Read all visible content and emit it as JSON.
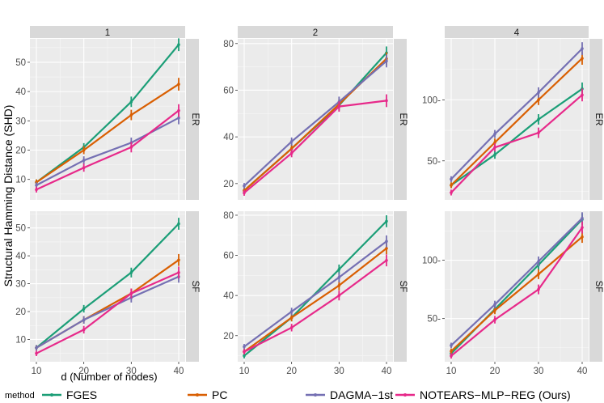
{
  "chart_data": {
    "type": "line",
    "ylabel": "Structural Hamming Distance (SHD)",
    "xlabel": "d (Number of nodes)",
    "x": [
      10,
      20,
      30,
      40
    ],
    "x_ticks": [
      "10",
      "20",
      "30",
      "40"
    ],
    "col_labels": [
      "1",
      "2",
      "4"
    ],
    "row_labels": [
      "ER",
      "SF"
    ],
    "legend": {
      "title": "method",
      "entries": [
        "FGES",
        "PC",
        "DAGMA−1st",
        "NOTEARS−MLP−REG (Ours)"
      ],
      "position": "bottom"
    },
    "series_colors": [
      "#1b9e77",
      "#d95f02",
      "#7570b3",
      "#e7298a"
    ],
    "panels": [
      {
        "row": "ER",
        "col": "1",
        "ylim": [
          3,
          58
        ],
        "yticks": [
          10,
          20,
          30,
          40,
          50
        ],
        "series": [
          {
            "name": "FGES",
            "values": [
              9,
              21,
              36.5,
              56
            ]
          },
          {
            "name": "PC",
            "values": [
              9,
              20,
              32,
              42.5
            ]
          },
          {
            "name": "DAGMA−1st",
            "values": [
              8,
              16.5,
              22.5,
              31
            ]
          },
          {
            "name": "NOTEARS−MLP−REG (Ours)",
            "values": [
              6.5,
              14,
              21,
              33.5
            ]
          }
        ]
      },
      {
        "row": "ER",
        "col": "2",
        "ylim": [
          13,
          82
        ],
        "yticks": [
          20,
          40,
          60,
          80
        ],
        "series": [
          {
            "name": "FGES",
            "values": [
              17,
              35,
              53.5,
              76
            ]
          },
          {
            "name": "PC",
            "values": [
              17,
              35,
              54,
              73.5
            ]
          },
          {
            "name": "DAGMA−1st",
            "values": [
              19,
              38,
              55,
              72.5
            ]
          },
          {
            "name": "NOTEARS−MLP−REG (Ours)",
            "values": [
              16,
              33,
              53,
              55.5
            ]
          }
        ]
      },
      {
        "row": "ER",
        "col": "4",
        "ylim": [
          18,
          150
        ],
        "yticks": [
          50,
          100
        ],
        "series": [
          {
            "name": "FGES",
            "values": [
              30,
              55,
              84,
              109
            ]
          },
          {
            "name": "PC",
            "values": [
              30,
              65,
              100,
              134
            ]
          },
          {
            "name": "DAGMA−1st",
            "values": [
              35,
              72,
              106,
              142
            ]
          },
          {
            "name": "NOTEARS−MLP−REG (Ours)",
            "values": [
              24,
              61,
              73,
              104
            ]
          }
        ]
      },
      {
        "row": "SF",
        "col": "1",
        "ylim": [
          2,
          56
        ],
        "yticks": [
          10,
          20,
          30,
          40,
          50
        ],
        "series": [
          {
            "name": "FGES",
            "values": [
              7,
              21,
              34,
              51.5
            ]
          },
          {
            "name": "PC",
            "values": [
              7,
              17,
              26.5,
              38.5
            ]
          },
          {
            "name": "DAGMA−1st",
            "values": [
              7,
              17,
              25,
              32.5
            ]
          },
          {
            "name": "NOTEARS−MLP−REG (Ours)",
            "values": [
              5,
              13.5,
              26.5,
              34
            ]
          }
        ]
      },
      {
        "row": "SF",
        "col": "2",
        "ylim": [
          7,
          82
        ],
        "yticks": [
          20,
          40,
          60,
          80
        ],
        "series": [
          {
            "name": "FGES",
            "values": [
              10,
              29,
              53,
              77
            ]
          },
          {
            "name": "PC",
            "values": [
              12,
              29,
              45,
              63.5
            ]
          },
          {
            "name": "DAGMA−1st",
            "values": [
              14.5,
              32,
              49,
              67
            ]
          },
          {
            "name": "NOTEARS−MLP−REG (Ours)",
            "values": [
              12,
              24,
              40,
              57.5
            ]
          }
        ]
      },
      {
        "row": "SF",
        "col": "4",
        "ylim": [
          13,
          142
        ],
        "yticks": [
          50,
          100
        ],
        "series": [
          {
            "name": "FGES",
            "values": [
              20,
              58,
              96,
              135
            ]
          },
          {
            "name": "PC",
            "values": [
              22,
              57,
              88,
              120
            ]
          },
          {
            "name": "DAGMA−1st",
            "values": [
              27,
              62,
              99,
              136
            ]
          },
          {
            "name": "NOTEARS−MLP−REG (Ours)",
            "values": [
              18,
              49,
              75,
              128
            ]
          }
        ]
      }
    ]
  }
}
